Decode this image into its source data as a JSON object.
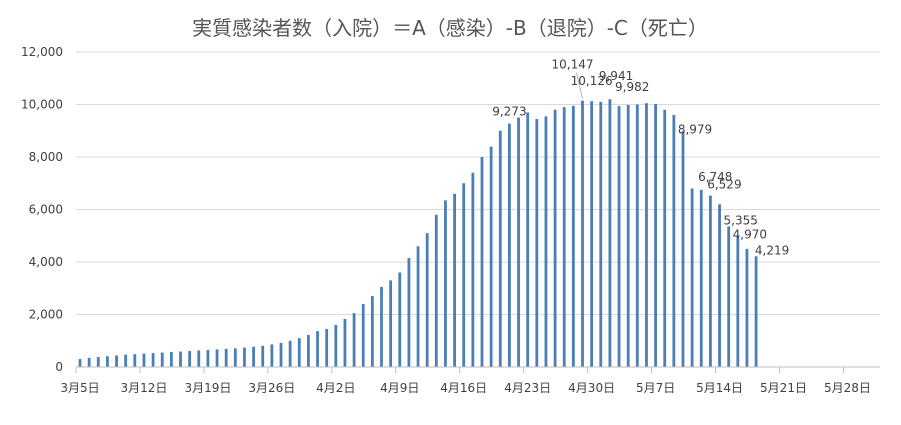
{
  "chart_data": {
    "type": "bar",
    "title": "実質感染者数（入院）＝A（感染）-B（退院）-C（死亡）",
    "ylim": [
      0,
      12000
    ],
    "yticks": [
      "0",
      "2,000",
      "4,000",
      "6,000",
      "8,000",
      "10,000",
      "12,000"
    ],
    "ytick_values": [
      0,
      2000,
      4000,
      6000,
      8000,
      10000,
      12000
    ],
    "grid": true,
    "legend": "none",
    "colors": {
      "bar": "#4a7ebb",
      "grid": "#d9d9d9",
      "axis": "#bfbfbf",
      "text": "#404040",
      "title": "#555555"
    },
    "x_start": "3月5日",
    "x_end": "5月31日",
    "xtick_labels": [
      "3月5日",
      "3月12日",
      "3月19日",
      "3月26日",
      "4月2日",
      "4月9日",
      "4月16日",
      "4月23日",
      "4月30日",
      "5月7日",
      "5月14日",
      "5月21日",
      "5月28日"
    ],
    "xtick_day_index": [
      0,
      7,
      14,
      21,
      28,
      35,
      42,
      49,
      56,
      63,
      70,
      77,
      84
    ],
    "day_count": 88,
    "values": [
      300,
      350,
      380,
      410,
      440,
      470,
      490,
      510,
      530,
      550,
      570,
      590,
      610,
      630,
      650,
      670,
      690,
      710,
      740,
      770,
      810,
      860,
      920,
      1000,
      1100,
      1220,
      1370,
      1450,
      1600,
      1830,
      2050,
      2400,
      2700,
      3050,
      3300,
      3600,
      4150,
      4600,
      5100,
      5800,
      6350,
      6600,
      7000,
      7400,
      8000,
      8400,
      9000,
      9273,
      9500,
      9700,
      9450,
      9550,
      9800,
      9900,
      9950,
      10147,
      10126,
      10100,
      10200,
      9941,
      9982,
      10000,
      10050,
      10020,
      9800,
      9600,
      8979,
      6800,
      6748,
      6529,
      6200,
      5355,
      4970,
      4500,
      4219
    ],
    "data_labels": [
      {
        "index": 47,
        "value": 9273,
        "text": "9,273"
      },
      {
        "index": 55,
        "value": 10147,
        "text": "10,147"
      },
      {
        "index": 56,
        "value": 10126,
        "text": "10,126"
      },
      {
        "index": 59,
        "value": 9941,
        "text": "9,941"
      },
      {
        "index": 60,
        "value": 9982,
        "text": "9,982"
      },
      {
        "index": 66,
        "value": 8979,
        "text": "8,979"
      },
      {
        "index": 68,
        "value": 6748,
        "text": "6,748"
      },
      {
        "index": 69,
        "value": 6529,
        "text": "6,529"
      },
      {
        "index": 71,
        "value": 5355,
        "text": "5,355"
      },
      {
        "index": 72,
        "value": 4970,
        "text": "4,970"
      },
      {
        "index": 74,
        "value": 4219,
        "text": "4,219"
      }
    ]
  }
}
